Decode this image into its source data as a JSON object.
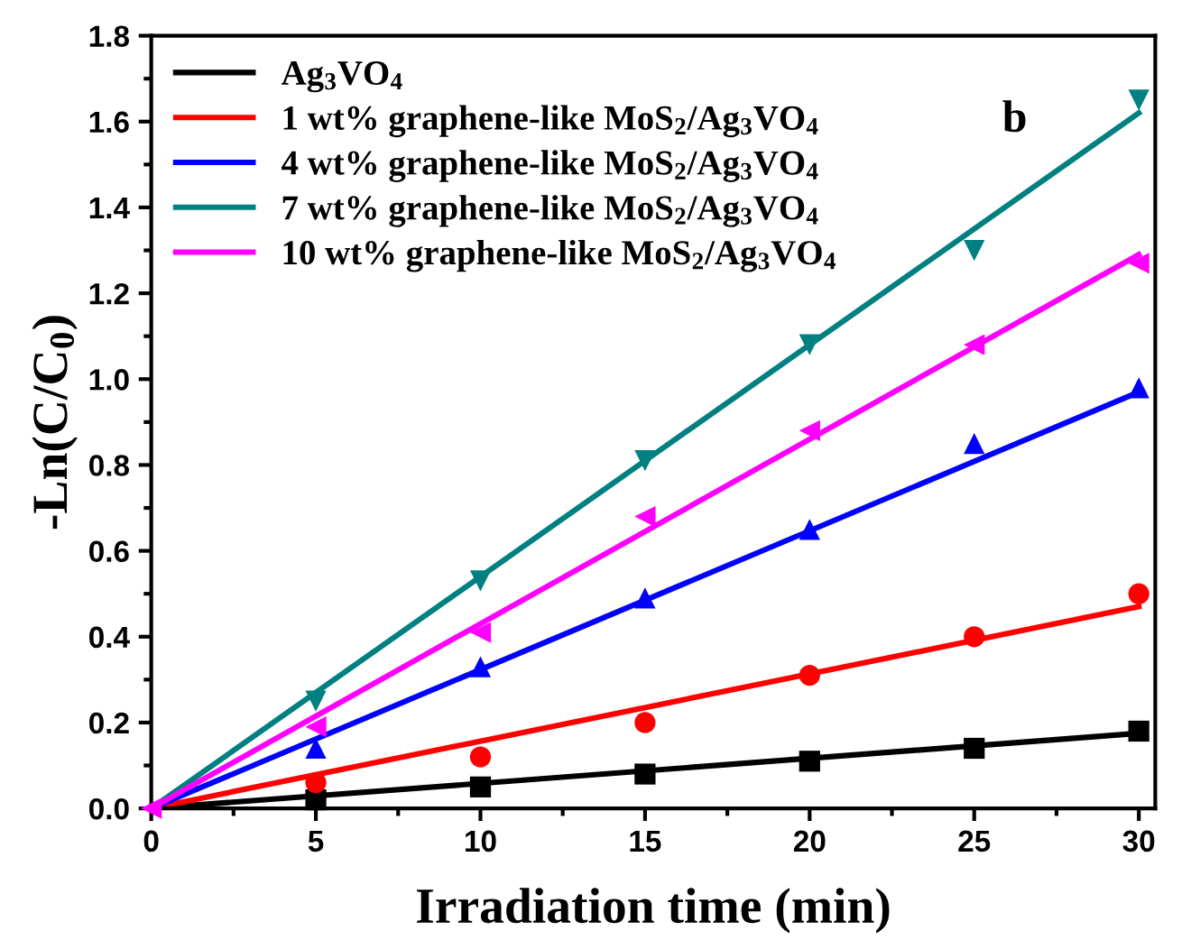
{
  "chart_data": {
    "type": "scatter",
    "xlabel": "Irradiation time (min)",
    "ylabel": "-Ln(C/C$_{0}$)",
    "annotations": [
      "b"
    ],
    "xlim": [
      0,
      30.5
    ],
    "ylim": [
      0,
      1.8
    ],
    "xticks": [
      0,
      5,
      10,
      15,
      20,
      25,
      30
    ],
    "yticks": [
      {
        "value": 0,
        "label": "0.0"
      },
      {
        "value": 0.2,
        "label": "0.2"
      },
      {
        "value": 0.4,
        "label": "0.4"
      },
      {
        "value": 0.6,
        "label": "0.6"
      },
      {
        "value": 0.8,
        "label": "0.8"
      },
      {
        "value": 1.0,
        "label": "1.0"
      },
      {
        "value": 1.2,
        "label": "1.2"
      },
      {
        "value": 1.4,
        "label": "1.4"
      },
      {
        "value": 1.6,
        "label": "1.6"
      },
      {
        "value": 1.8,
        "label": "1.8"
      }
    ],
    "grid": false,
    "legend": "top left",
    "series": [
      {
        "marker": "square",
        "color": "#000000",
        "x": [
          5,
          10,
          15,
          20,
          25,
          30
        ],
        "values": [
          0.02,
          0.05,
          0.08,
          0.11,
          0.14,
          0.18
        ]
      },
      {
        "marker": "circle",
        "color": "#ff0000",
        "x": [
          5,
          10,
          15,
          20,
          25,
          30
        ],
        "values": [
          0.06,
          0.12,
          0.2,
          0.31,
          0.4,
          0.5
        ]
      },
      {
        "marker": "triangle",
        "color": "#0000ff",
        "x": [
          5,
          10,
          15,
          20,
          25,
          30
        ],
        "values": [
          0.14,
          0.33,
          0.49,
          0.65,
          0.85,
          0.98
        ]
      },
      {
        "marker": "triangle-down",
        "color": "#008080",
        "x": [
          5,
          10,
          15,
          20,
          25,
          30
        ],
        "values": [
          0.25,
          0.53,
          0.81,
          1.08,
          1.3,
          1.65
        ]
      },
      {
        "marker": "triangle-left",
        "color": "#ff00ff",
        "x": [
          0,
          5,
          10,
          15,
          20,
          25,
          30
        ],
        "values": [
          0,
          0.19,
          0.41,
          0.68,
          0.88,
          1.08,
          1.27
        ]
      },
      {
        "type": "line",
        "name": "Ag$_{3}$VO$_{4}$",
        "color": "#000000",
        "x": [
          0,
          30
        ],
        "values": [
          0,
          0.175
        ]
      },
      {
        "type": "line",
        "name": "1 wt% graphene-like MoS$_{2}$/Ag$_{3}$VO$_{4}$",
        "color": "#ff0000",
        "x": [
          0,
          30
        ],
        "values": [
          0,
          0.47
        ]
      },
      {
        "type": "line",
        "name": "4 wt% graphene-like MoS$_{2}$/Ag$_{3}$VO$_{4}$",
        "color": "#0000ff",
        "x": [
          0,
          30
        ],
        "values": [
          0,
          0.97
        ]
      },
      {
        "type": "line",
        "name": "7 wt% graphene-like MoS$_{2}$/Ag$_{3}$VO$_{4}$",
        "color": "#008080",
        "x": [
          0,
          30
        ],
        "values": [
          0,
          1.62
        ]
      },
      {
        "type": "line",
        "name": "10 wt% graphene-like MoS$_{2}$/Ag$_{3}$VO$_{4}$",
        "color": "#ff00ff",
        "x": [
          0,
          30
        ],
        "values": [
          0,
          1.29
        ]
      }
    ]
  }
}
